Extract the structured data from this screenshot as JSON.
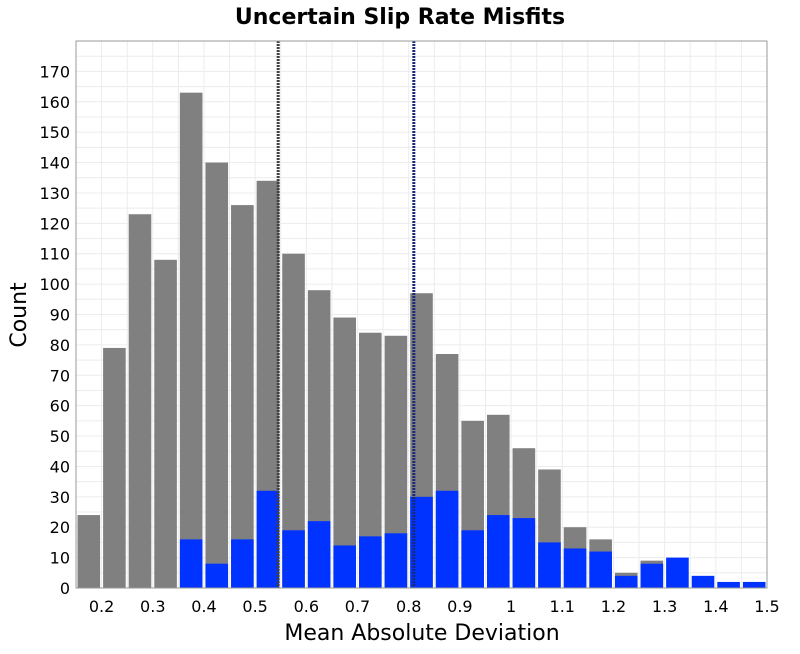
{
  "chart_data": {
    "type": "bar",
    "title": "Uncertain Slip Rate Misfits",
    "xlabel": "Mean Absolute Deviation",
    "ylabel": "Count",
    "xlim": [
      0.15,
      1.5
    ],
    "ylim": [
      0,
      180
    ],
    "bin_width": 0.05,
    "grid": true,
    "x_ticks": [
      0.2,
      0.3,
      0.4,
      0.5,
      0.6,
      0.7,
      0.8,
      0.9,
      1,
      1.1,
      1.2,
      1.3,
      1.4,
      1.5
    ],
    "y_ticks": [
      0,
      10,
      20,
      30,
      40,
      50,
      60,
      70,
      80,
      90,
      100,
      110,
      120,
      130,
      140,
      150,
      160,
      170
    ],
    "bins": [
      0.15,
      0.2,
      0.25,
      0.3,
      0.35,
      0.4,
      0.45,
      0.5,
      0.55,
      0.6,
      0.65,
      0.7,
      0.75,
      0.8,
      0.85,
      0.9,
      0.95,
      1.0,
      1.05,
      1.1,
      1.15,
      1.2,
      1.25,
      1.3,
      1.35,
      1.4,
      1.45
    ],
    "series": [
      {
        "color": "#808080",
        "values": [
          24,
          79,
          123,
          108,
          163,
          140,
          126,
          134,
          110,
          98,
          89,
          84,
          83,
          97,
          77,
          55,
          57,
          46,
          39,
          20,
          16,
          5,
          9,
          0,
          0,
          0,
          0
        ]
      },
      {
        "color": "#0033ff",
        "values": [
          0,
          0,
          0,
          0,
          16,
          8,
          16,
          32,
          19,
          22,
          14,
          17,
          18,
          30,
          32,
          19,
          24,
          23,
          15,
          13,
          12,
          4,
          8,
          10,
          4,
          2,
          2
        ]
      }
    ],
    "reference_lines": [
      {
        "x": 0.545,
        "color": "#404040"
      },
      {
        "x": 0.81,
        "color": "#1a2a7a"
      }
    ]
  }
}
